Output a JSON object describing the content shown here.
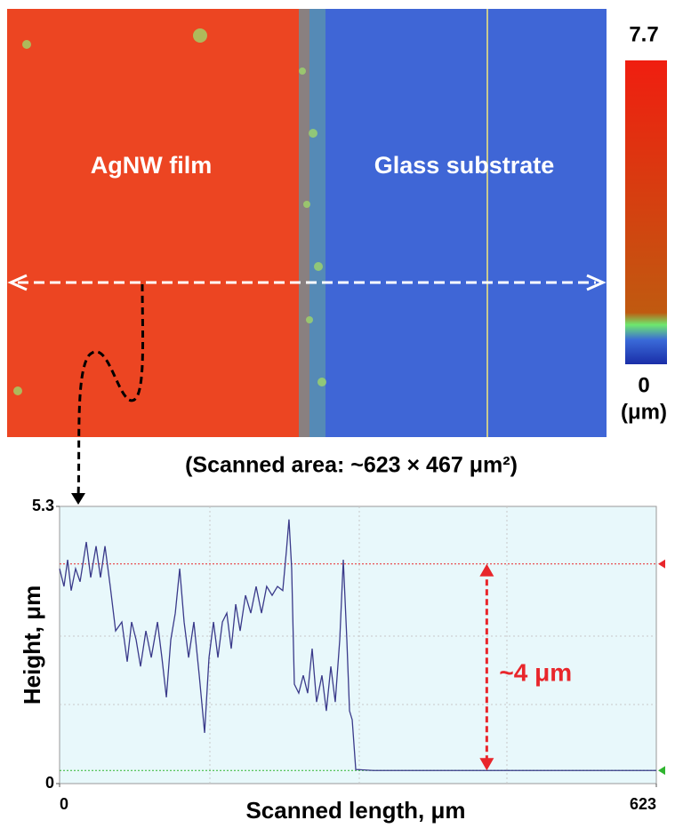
{
  "height_map": {
    "left_label": "AgNW film",
    "right_label": "Glass substrate",
    "colorbar": {
      "lim": [
        0,
        7.7
      ],
      "ticks": [
        0,
        7.7
      ],
      "unit": "(μm)"
    },
    "caption": "(Scanned area: ~623 × 467 μm²)"
  },
  "chart_data": {
    "type": "line",
    "x_label": "Scanned length, μm",
    "y_label": "Height, μm",
    "xlim": [
      0,
      623
    ],
    "xticks": [
      0,
      623
    ],
    "ylim": [
      0,
      5.3
    ],
    "yticks": [
      0,
      5.3
    ],
    "reference_lines": [
      {
        "value": 4.2,
        "color": "#e8262b"
      },
      {
        "value": 0.25,
        "color": "#2fb52f"
      }
    ],
    "annotation": {
      "text": "~4 μm",
      "x": 446,
      "from": 0.25,
      "to": 4.2,
      "color": "#e8262b"
    },
    "series": [
      {
        "color": "#3a3a8a",
        "x": [
          0,
          4.6,
          8.4,
          12.1,
          16.7,
          21.4,
          27.9,
          32.5,
          38.1,
          42.7,
          47.4,
          52.9,
          58.5,
          65.0,
          70.6,
          75.2,
          79.9,
          84.5,
          90.1,
          95.7,
          102.2,
          106.8,
          111.5,
          116.1,
          120.8,
          125.4,
          130.0,
          134.7,
          140.2,
          145.8,
          151.4,
          156.0,
          160.7,
          165.3,
          170.0,
          174.6,
          179.2,
          183.9,
          188.5,
          194.1,
          199.6,
          205.2,
          210.8,
          216.2,
          221.9,
          227.5,
          233.0,
          236.8,
          239.5,
          242.3,
          245.1,
          249.7,
          254.4,
          259.0,
          263.7,
          268.3,
          273.9,
          278.5,
          283.2,
          287.8,
          292.5,
          296.2,
          299.9,
          302.7,
          305.5,
          309.2,
          327.8,
          623
        ],
        "values": [
          4.11,
          3.77,
          4.28,
          3.69,
          4.11,
          3.86,
          4.62,
          3.94,
          4.54,
          3.94,
          4.54,
          3.77,
          2.92,
          3.09,
          2.33,
          3.09,
          2.75,
          2.24,
          2.92,
          2.41,
          3.09,
          2.41,
          1.65,
          2.75,
          3.26,
          4.11,
          3.09,
          2.41,
          3.09,
          2.07,
          0.97,
          2.41,
          3.09,
          2.41,
          3.09,
          3.26,
          2.58,
          3.43,
          2.92,
          3.6,
          3.26,
          3.77,
          3.26,
          3.77,
          3.6,
          3.77,
          3.69,
          4.45,
          5.05,
          4.11,
          1.9,
          1.73,
          2.07,
          1.73,
          2.58,
          1.56,
          2.07,
          1.39,
          2.24,
          1.56,
          2.75,
          4.28,
          2.75,
          1.39,
          1.22,
          0.27,
          0.25,
          0.25
        ]
      }
    ]
  }
}
